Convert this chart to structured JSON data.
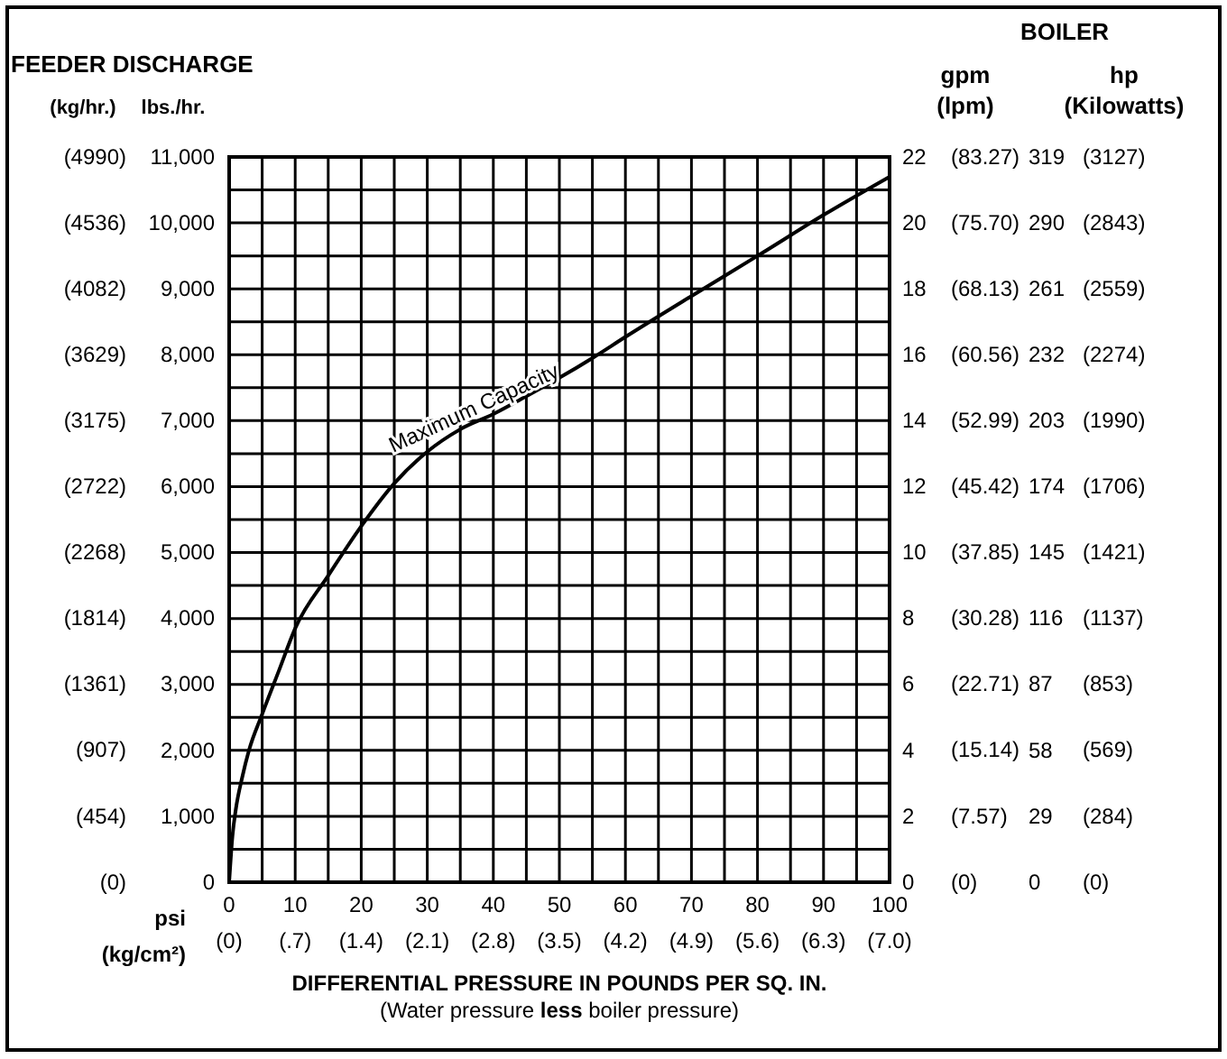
{
  "chart_data": {
    "type": "line",
    "annotations": [
      "FEEDER DISCHARGE",
      "BOILER",
      "psi",
      "(Water pressure less boiler pressure)",
      "(kg/hr.)",
      "(lpm)",
      "(Kilowatts)",
      "(0)",
      "(454)",
      "(907)",
      "(1361)",
      "(1814)",
      "(2268)",
      "(2722)",
      "(3175)",
      "(3629)",
      "(4082)",
      "(4536)",
      "(4990)",
      "(0)",
      "(7.57)",
      "(15.14)",
      "(22.71)",
      "(30.28)",
      "(37.85)",
      "(45.42)",
      "(52.99)",
      "(60.56)",
      "(68.13)",
      "(75.70)",
      "(83.27)",
      "(0)",
      "(284)",
      "(569)",
      "(853)",
      "(1137)",
      "(1421)",
      "(1706)",
      "(1990)",
      "(2274)",
      "(2559)",
      "(2843)",
      "(3127)"
    ],
    "xlabel": "DIFFERENTIAL PRESSURE IN POUNDS PER SQ. IN.",
    "x2label": "(kg/cm²)",
    "ylabel": "lbs./hr.",
    "y2label": "gpm",
    "y3label": "hp",
    "x": [
      0,
      0.5,
      1,
      2,
      3,
      5,
      7.5,
      10,
      15,
      20,
      25,
      30,
      35,
      40,
      45,
      50,
      55,
      60,
      70,
      80,
      90,
      100
    ],
    "series": [
      {
        "name": "Maximum Capacity",
        "color": "#000000",
        "values": [
          0,
          700,
          1100,
          1600,
          2000,
          2550,
          3200,
          3850,
          4650,
          5400,
          6050,
          6530,
          6870,
          7100,
          7370,
          7650,
          7950,
          8270,
          8890,
          9500,
          10120,
          10700
        ]
      }
    ],
    "xlim": [
      0,
      100
    ],
    "xticks": [
      0,
      {
        "value": 5,
        "label": null
      },
      10,
      {
        "value": 15,
        "label": null
      },
      20,
      {
        "value": 25,
        "label": null
      },
      30,
      {
        "value": 35,
        "label": null
      },
      40,
      {
        "value": 45,
        "label": null
      },
      50,
      {
        "value": 55,
        "label": null
      },
      60,
      {
        "value": 65,
        "label": null
      },
      70,
      {
        "value": 75,
        "label": null
      },
      80,
      {
        "value": 85,
        "label": null
      },
      90,
      {
        "value": 95,
        "label": null
      },
      100
    ],
    "x2lim": [
      0,
      7.0
    ],
    "x2ticks": [
      {
        "value": 0,
        "label": "(0)"
      },
      {
        "value": 0.7,
        "label": "(.7)"
      },
      {
        "value": 1.4,
        "label": "(1.4)"
      },
      {
        "value": 2.1,
        "label": "(2.1)"
      },
      {
        "value": 2.8,
        "label": "(2.8)"
      },
      {
        "value": 3.5,
        "label": "(3.5)"
      },
      {
        "value": 4.2,
        "label": "(4.2)"
      },
      {
        "value": 4.9,
        "label": "(4.9)"
      },
      {
        "value": 5.6,
        "label": "(5.6)"
      },
      {
        "value": 6.3,
        "label": "(6.3)"
      },
      {
        "value": 7.0,
        "label": "(7.0)"
      }
    ],
    "ylim": [
      0,
      11000
    ],
    "yticks": [
      0,
      {
        "value": 500,
        "label": null
      },
      {
        "value": 1000,
        "label": "1,000"
      },
      {
        "value": 1500,
        "label": null
      },
      {
        "value": 2000,
        "label": "2,000"
      },
      {
        "value": 2500,
        "label": null
      },
      {
        "value": 3000,
        "label": "3,000"
      },
      {
        "value": 3500,
        "label": null
      },
      {
        "value": 4000,
        "label": "4,000"
      },
      {
        "value": 4500,
        "label": null
      },
      {
        "value": 5000,
        "label": "5,000"
      },
      {
        "value": 5500,
        "label": null
      },
      {
        "value": 6000,
        "label": "6,000"
      },
      {
        "value": 6500,
        "label": null
      },
      {
        "value": 7000,
        "label": "7,000"
      },
      {
        "value": 7500,
        "label": null
      },
      {
        "value": 8000,
        "label": "8,000"
      },
      {
        "value": 8500,
        "label": null
      },
      {
        "value": 9000,
        "label": "9,000"
      },
      {
        "value": 9500,
        "label": null
      },
      {
        "value": 10000,
        "label": "10,000"
      },
      {
        "value": 10500,
        "label": null
      },
      {
        "value": 11000,
        "label": "11,000"
      }
    ],
    "y2lim": [
      0,
      22
    ],
    "y2ticks": [
      0,
      2,
      4,
      6,
      8,
      10,
      12,
      14,
      16,
      18,
      20,
      22
    ],
    "y3lim": [
      0,
      319
    ],
    "y3ticks": [
      0,
      29,
      58,
      87,
      116,
      145,
      174,
      203,
      232,
      261,
      290,
      319
    ],
    "grid": true,
    "line_style": "solid",
    "marker": "none"
  }
}
